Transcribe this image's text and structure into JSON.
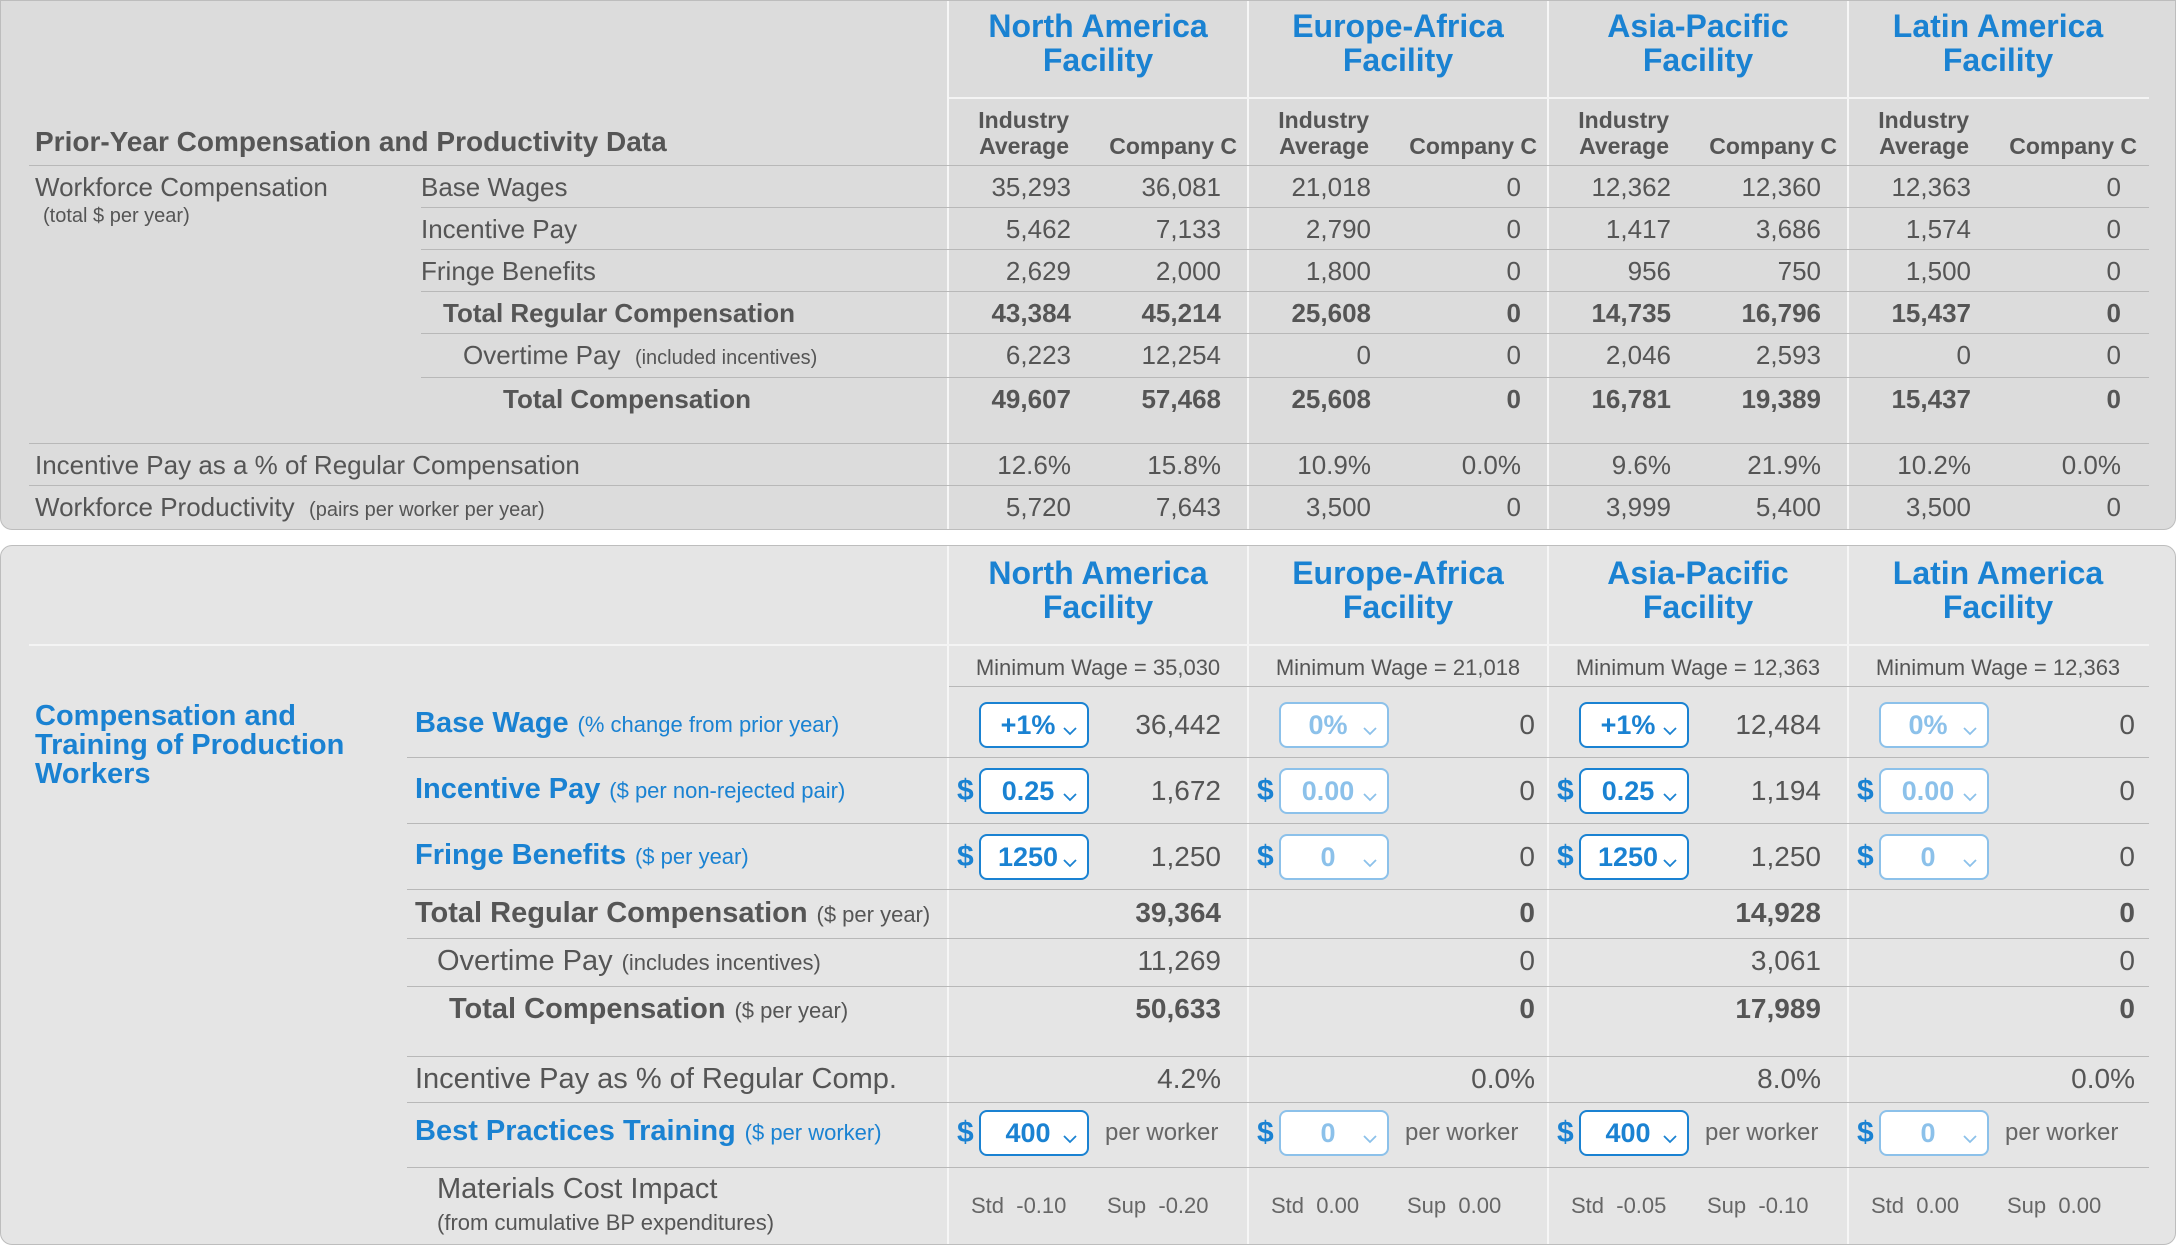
{
  "regions": [
    "North America\nFacility",
    "Europe-Africa\nFacility",
    "Asia-Pacific\nFacility",
    "Latin America\nFacility"
  ],
  "region_lines": [
    [
      "North America",
      "Facility"
    ],
    [
      "Europe-Africa",
      "Facility"
    ],
    [
      "Asia-Pacific",
      "Facility"
    ],
    [
      "Latin America",
      "Facility"
    ]
  ],
  "prior": {
    "title": "Prior-Year Compensation and Productivity Data",
    "col_industry": [
      "Industry",
      "Average"
    ],
    "col_company": "Company C",
    "group_label": "Workforce Compensation",
    "group_sub": "(total $ per year)",
    "rows": [
      {
        "label": "Base Wages",
        "sub": "",
        "bold": false,
        "values": [
          "35,293",
          "36,081",
          "21,018",
          "0",
          "12,362",
          "12,360",
          "12,363",
          "0"
        ]
      },
      {
        "label": "Incentive Pay",
        "sub": "",
        "bold": false,
        "values": [
          "5,462",
          "7,133",
          "2,790",
          "0",
          "1,417",
          "3,686",
          "1,574",
          "0"
        ]
      },
      {
        "label": "Fringe Benefits",
        "sub": "",
        "bold": false,
        "values": [
          "2,629",
          "2,000",
          "1,800",
          "0",
          "956",
          "750",
          "1,500",
          "0"
        ]
      },
      {
        "label": "Total Regular Compensation",
        "sub": "",
        "bold": true,
        "values": [
          "43,384",
          "45,214",
          "25,608",
          "0",
          "14,735",
          "16,796",
          "15,437",
          "0"
        ]
      },
      {
        "label": "Overtime Pay",
        "sub": "(included incentives)",
        "bold": false,
        "values": [
          "6,223",
          "12,254",
          "0",
          "0",
          "2,046",
          "2,593",
          "0",
          "0"
        ]
      },
      {
        "label": "Total Compensation",
        "sub": "",
        "bold": true,
        "values": [
          "49,607",
          "57,468",
          "25,608",
          "0",
          "16,781",
          "19,389",
          "15,437",
          "0"
        ]
      }
    ],
    "incentive_pct": {
      "label": "Incentive Pay as a % of Regular Compensation",
      "values": [
        "12.6%",
        "15.8%",
        "10.9%",
        "0.0%",
        "9.6%",
        "21.9%",
        "10.2%",
        "0.0%"
      ]
    },
    "productivity": {
      "label": "Workforce Productivity",
      "sub": "(pairs per worker per year)",
      "values": [
        "5,720",
        "7,643",
        "3,500",
        "0",
        "3,999",
        "5,400",
        "3,500",
        "0"
      ]
    }
  },
  "current": {
    "section_title": [
      "Compensation and",
      "Training of Production",
      "Workers"
    ],
    "min_wage": [
      "Minimum Wage = 35,030",
      "Minimum Wage = 21,018",
      "Minimum Wage = 12,363",
      "Minimum Wage = 12,363"
    ],
    "base_wage": {
      "label": "Base Wage",
      "sub": "(% change from prior year)",
      "selects": [
        "+1%",
        "0%",
        "+1%",
        "0%"
      ],
      "values": [
        "36,442",
        "0",
        "12,484",
        "0"
      ]
    },
    "incentive": {
      "label": "Incentive Pay",
      "sub": "($ per non-rejected pair)",
      "selects": [
        "0.25",
        "0.00",
        "0.25",
        "0.00"
      ],
      "values": [
        "1,672",
        "0",
        "1,194",
        "0"
      ]
    },
    "fringe": {
      "label": "Fringe Benefits",
      "sub": "($ per year)",
      "selects": [
        "1250",
        "0",
        "1250",
        "0"
      ],
      "values": [
        "1,250",
        "0",
        "1,250",
        "0"
      ]
    },
    "total_regular": {
      "label": "Total Regular Compensation",
      "sub": "($ per year)",
      "values": [
        "39,364",
        "0",
        "14,928",
        "0"
      ]
    },
    "overtime": {
      "label": "Overtime Pay",
      "sub": "(includes incentives)",
      "values": [
        "11,269",
        "0",
        "3,061",
        "0"
      ]
    },
    "total_comp": {
      "label": "Total Compensation",
      "sub": "($ per year)",
      "values": [
        "50,633",
        "0",
        "17,989",
        "0"
      ]
    },
    "incentive_pct": {
      "label": "Incentive Pay as % of Regular Comp.",
      "values": [
        "4.2%",
        "0.0%",
        "8.0%",
        "0.0%"
      ]
    },
    "training": {
      "label": "Best Practices Training",
      "sub": "($ per worker)",
      "selects": [
        "400",
        "0",
        "400",
        "0"
      ],
      "unit": "per worker"
    },
    "materials": {
      "label": "Materials Cost Impact",
      "sub": "(from cumulative BP expenditures)",
      "std": [
        "Std  -0.10",
        "Std  0.00",
        "Std  -0.05",
        "Std  0.00"
      ],
      "sup": [
        "Sup  -0.20",
        "Sup  0.00",
        "Sup  -0.10",
        "Sup  0.00"
      ]
    },
    "dollar_sign": "$"
  },
  "colors": {
    "accent": "#1a82d2",
    "panel": "#dcdcdc",
    "text": "#555555"
  }
}
